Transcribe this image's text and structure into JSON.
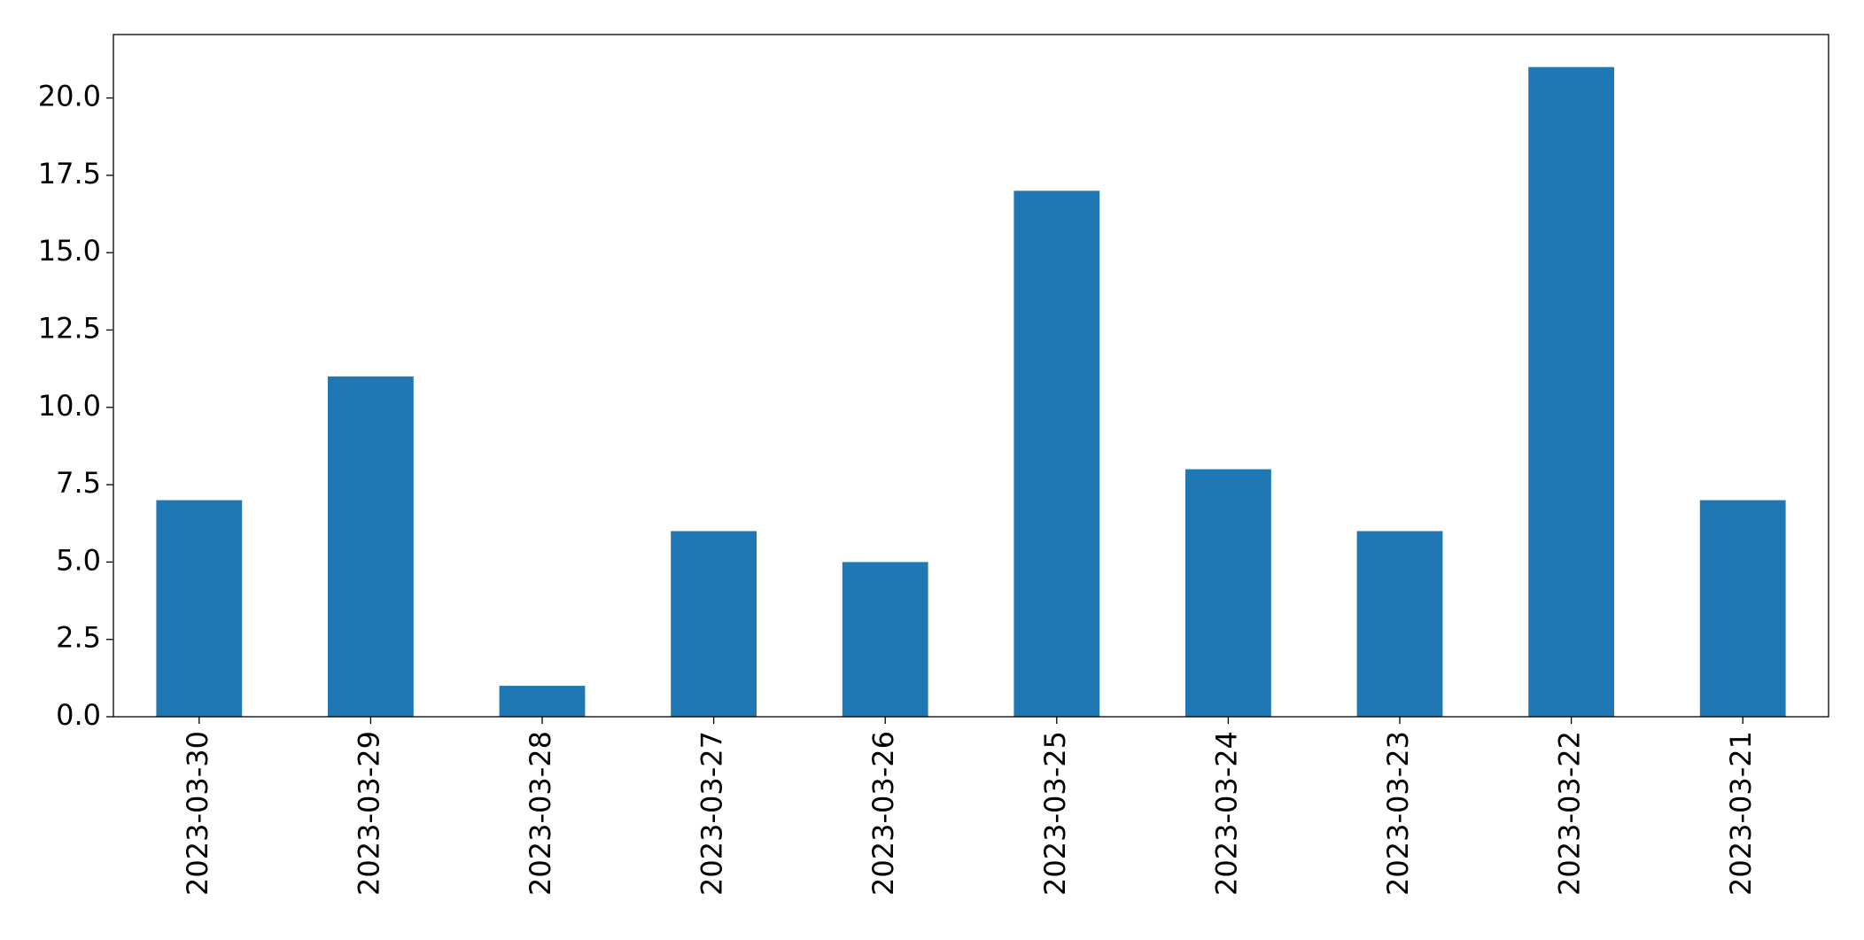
{
  "chart_data": {
    "type": "bar",
    "categories": [
      "2023-03-30",
      "2023-03-29",
      "2023-03-28",
      "2023-03-27",
      "2023-03-26",
      "2023-03-25",
      "2023-03-24",
      "2023-03-23",
      "2023-03-22",
      "2023-03-21"
    ],
    "values": [
      7,
      11,
      1,
      6,
      5,
      17,
      8,
      6,
      21,
      7
    ],
    "color": "#1f77b4",
    "ylim": [
      0,
      22.05
    ],
    "yticks": [
      {
        "value": 0,
        "label": "0.0"
      },
      2.5,
      {
        "value": 5,
        "label": "5.0"
      },
      7.5,
      {
        "value": 10,
        "label": "10.0"
      },
      12.5,
      {
        "value": 15,
        "label": "15.0"
      },
      17.5,
      {
        "value": 20,
        "label": "20.0"
      }
    ],
    "grid": false
  }
}
